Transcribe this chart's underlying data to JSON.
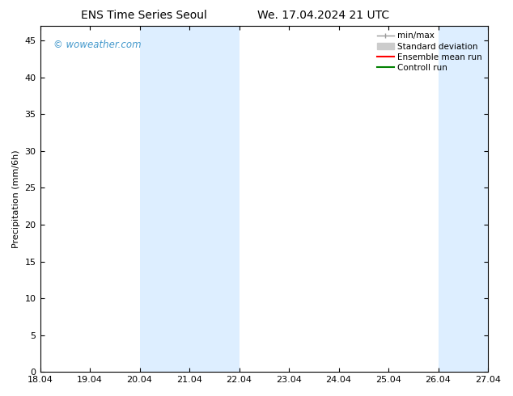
{
  "title_left": "ENS Time Series Seoul",
  "title_right": "We. 17.04.2024 21 UTC",
  "ylabel": "Precipitation (mm/6h)",
  "ylim": [
    0,
    47
  ],
  "yticks": [
    0,
    5,
    10,
    15,
    20,
    25,
    30,
    35,
    40,
    45
  ],
  "xtick_labels": [
    "18.04",
    "19.04",
    "20.04",
    "21.04",
    "22.04",
    "23.04",
    "24.04",
    "25.04",
    "26.04",
    "27.04"
  ],
  "xtick_positions": [
    0,
    1,
    2,
    3,
    4,
    5,
    6,
    7,
    8,
    9
  ],
  "shaded_regions": [
    {
      "xstart": 2.0,
      "xend": 3.0,
      "color": "#ddeeff"
    },
    {
      "xstart": 3.0,
      "xend": 4.0,
      "color": "#ddeeff"
    },
    {
      "xstart": 8.0,
      "xend": 9.0,
      "color": "#ddeeff"
    }
  ],
  "background_color": "#ffffff",
  "watermark_text": "© woweather.com",
  "watermark_color": "#4499cc",
  "legend_entries": [
    {
      "label": "min/max",
      "color": "#999999",
      "lw": 1.0,
      "type": "line_with_ticks"
    },
    {
      "label": "Standard deviation",
      "color": "#cccccc",
      "lw": 5,
      "type": "thick"
    },
    {
      "label": "Ensemble mean run",
      "color": "#ff0000",
      "lw": 1.5,
      "type": "line"
    },
    {
      "label": "Controll run",
      "color": "#008000",
      "lw": 1.5,
      "type": "line"
    }
  ],
  "title_fontsize": 10,
  "axis_fontsize": 8,
  "watermark_fontsize": 8.5,
  "legend_fontsize": 7.5
}
